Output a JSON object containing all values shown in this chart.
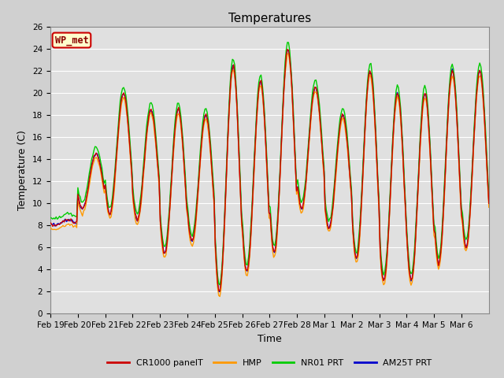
{
  "title": "Temperatures",
  "ylabel": "Temperature (C)",
  "xlabel": "Time",
  "ylim": [
    0,
    26
  ],
  "yticks": [
    0,
    2,
    4,
    6,
    8,
    10,
    12,
    14,
    16,
    18,
    20,
    22,
    24,
    26
  ],
  "xtick_labels": [
    "Feb 19",
    "Feb 20",
    "Feb 21",
    "Feb 22",
    "Feb 23",
    "Feb 24",
    "Feb 25",
    "Feb 26",
    "Feb 27",
    "Feb 28",
    "Mar 1",
    "Mar 2",
    "Mar 3",
    "Mar 4",
    "Mar 5",
    "Mar 6"
  ],
  "legend_labels": [
    "CR1000 panelT",
    "HMP",
    "NR01 PRT",
    "AM25T PRT"
  ],
  "legend_colors": [
    "#cc0000",
    "#ff9900",
    "#00cc00",
    "#0000cc"
  ],
  "annotation_text": "WP_met",
  "annotation_box_facecolor": "#ffffcc",
  "annotation_box_edgecolor": "#cc0000",
  "annotation_text_color": "#8b0000",
  "fig_facecolor": "#d0d0d0",
  "plot_bg_color": "#e0e0e0",
  "grid_color": "#ffffff",
  "title_fontsize": 11,
  "axis_fontsize": 9,
  "tick_fontsize": 7.5,
  "day_peaks": [
    8.5,
    14.5,
    20.0,
    18.5,
    18.5,
    18.0,
    22.5,
    21.0,
    24.0,
    20.5,
    18.0,
    22.0,
    20.0,
    20.0,
    22.0,
    22.0
  ],
  "day_troughs": [
    8.0,
    9.5,
    9.0,
    8.5,
    5.5,
    6.5,
    2.0,
    3.8,
    5.5,
    9.5,
    7.8,
    5.0,
    3.0,
    3.0,
    4.5,
    6.0
  ]
}
